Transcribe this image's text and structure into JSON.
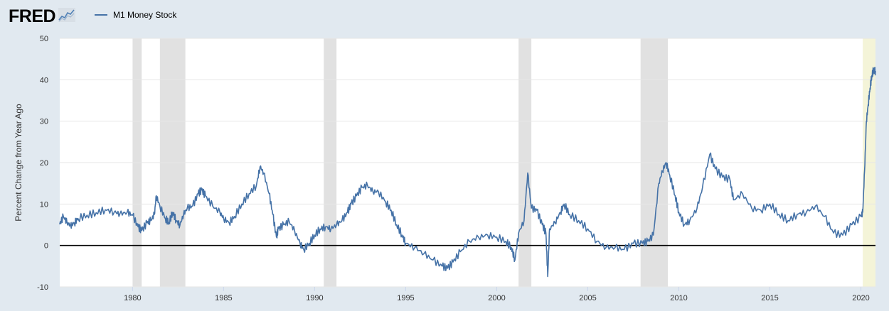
{
  "header": {
    "logo_text": "FRED",
    "logo_mark": "®",
    "logo_icon": "fred-chart-mark-icon"
  },
  "legend": {
    "label": "M1 Money Stock",
    "color": "#4572a7"
  },
  "chart_data": {
    "type": "line",
    "title": "",
    "ylabel": "Percent Change from Year Ago",
    "xlabel": "",
    "xlim": [
      1976.0,
      2020.8
    ],
    "ylim": [
      -10,
      50
    ],
    "x_ticks": [
      1980,
      1985,
      1990,
      1995,
      2000,
      2005,
      2010,
      2015,
      2020
    ],
    "x_tick_labels": [
      "1980",
      "1985",
      "1990",
      "1995",
      "2000",
      "2005",
      "2010",
      "2015",
      "2020"
    ],
    "y_ticks": [
      -10,
      0,
      10,
      20,
      30,
      40,
      50
    ],
    "y_tick_labels": [
      "-10",
      "0",
      "10",
      "20",
      "30",
      "40",
      "50"
    ],
    "grid": true,
    "zero_line": true,
    "recessions": [
      {
        "start": 1980.0,
        "end": 1980.5
      },
      {
        "start": 1981.5,
        "end": 1982.9
      },
      {
        "start": 1990.5,
        "end": 1991.2
      },
      {
        "start": 2001.2,
        "end": 2001.9
      },
      {
        "start": 2007.9,
        "end": 2009.4
      },
      {
        "start": 2020.1,
        "end": 2020.8
      }
    ],
    "recession_color": "#e1e1e1",
    "recent_recession_color": "#f4f4d8",
    "series": [
      {
        "name": "M1 Money Stock",
        "color": "#4572a7",
        "points": [
          [
            1976.0,
            5.2
          ],
          [
            1976.2,
            7.0
          ],
          [
            1976.4,
            5.5
          ],
          [
            1976.6,
            4.8
          ],
          [
            1976.8,
            5.4
          ],
          [
            1977.0,
            6.5
          ],
          [
            1977.5,
            7.3
          ],
          [
            1978.0,
            7.9
          ],
          [
            1978.5,
            8.6
          ],
          [
            1979.0,
            8.1
          ],
          [
            1979.3,
            7.6
          ],
          [
            1979.7,
            8.0
          ],
          [
            1980.0,
            7.3
          ],
          [
            1980.3,
            4.5
          ],
          [
            1980.5,
            3.6
          ],
          [
            1980.8,
            5.5
          ],
          [
            1981.0,
            6.0
          ],
          [
            1981.2,
            7.5
          ],
          [
            1981.3,
            12.0
          ],
          [
            1981.5,
            9.5
          ],
          [
            1981.8,
            6.5
          ],
          [
            1982.0,
            5.5
          ],
          [
            1982.2,
            8.0
          ],
          [
            1982.4,
            6.0
          ],
          [
            1982.6,
            4.9
          ],
          [
            1982.8,
            7.5
          ],
          [
            1983.0,
            9.0
          ],
          [
            1983.3,
            9.5
          ],
          [
            1983.6,
            12.5
          ],
          [
            1983.8,
            13.4
          ],
          [
            1984.0,
            12.0
          ],
          [
            1984.4,
            9.5
          ],
          [
            1984.8,
            8.0
          ],
          [
            1985.0,
            6.5
          ],
          [
            1985.3,
            5.5
          ],
          [
            1985.6,
            7.0
          ],
          [
            1986.0,
            10.0
          ],
          [
            1986.4,
            12.5
          ],
          [
            1986.8,
            14.5
          ],
          [
            1987.0,
            19.0
          ],
          [
            1987.2,
            17.5
          ],
          [
            1987.5,
            12.5
          ],
          [
            1987.7,
            7.5
          ],
          [
            1987.9,
            2.0
          ],
          [
            1988.0,
            4.0
          ],
          [
            1988.3,
            5.0
          ],
          [
            1988.6,
            5.8
          ],
          [
            1988.9,
            3.5
          ],
          [
            1989.2,
            0.5
          ],
          [
            1989.4,
            -1.0
          ],
          [
            1989.7,
            0.5
          ],
          [
            1990.0,
            2.5
          ],
          [
            1990.3,
            4.0
          ],
          [
            1990.6,
            4.5
          ],
          [
            1990.9,
            4.0
          ],
          [
            1991.2,
            5.0
          ],
          [
            1991.5,
            6.0
          ],
          [
            1991.8,
            8.0
          ],
          [
            1992.0,
            10.0
          ],
          [
            1992.3,
            12.0
          ],
          [
            1992.6,
            14.0
          ],
          [
            1992.9,
            14.5
          ],
          [
            1993.2,
            13.0
          ],
          [
            1993.5,
            13.0
          ],
          [
            1993.9,
            10.5
          ],
          [
            1994.2,
            8.5
          ],
          [
            1994.5,
            5.0
          ],
          [
            1994.8,
            2.5
          ],
          [
            1995.0,
            0.5
          ],
          [
            1995.5,
            -0.5
          ],
          [
            1996.0,
            -2.0
          ],
          [
            1996.5,
            -3.5
          ],
          [
            1997.0,
            -5.0
          ],
          [
            1997.3,
            -5.5
          ],
          [
            1997.6,
            -4.0
          ],
          [
            1998.0,
            -1.5
          ],
          [
            1998.5,
            1.0
          ],
          [
            1999.0,
            2.0
          ],
          [
            1999.5,
            2.5
          ],
          [
            2000.0,
            2.0
          ],
          [
            2000.5,
            1.0
          ],
          [
            2000.8,
            -0.5
          ],
          [
            2001.0,
            -3.5
          ],
          [
            2001.2,
            3.0
          ],
          [
            2001.5,
            6.0
          ],
          [
            2001.7,
            17.5
          ],
          [
            2001.9,
            9.0
          ],
          [
            2002.2,
            8.5
          ],
          [
            2002.5,
            5.0
          ],
          [
            2002.7,
            3.0
          ],
          [
            2002.8,
            -7.5
          ],
          [
            2002.9,
            4.0
          ],
          [
            2003.2,
            5.5
          ],
          [
            2003.5,
            8.0
          ],
          [
            2003.7,
            10.0
          ],
          [
            2004.0,
            7.5
          ],
          [
            2004.5,
            6.0
          ],
          [
            2005.0,
            4.0
          ],
          [
            2005.5,
            1.0
          ],
          [
            2006.0,
            -0.5
          ],
          [
            2006.5,
            -0.5
          ],
          [
            2007.0,
            -1.0
          ],
          [
            2007.5,
            0.5
          ],
          [
            2008.0,
            0.5
          ],
          [
            2008.3,
            1.0
          ],
          [
            2008.6,
            2.5
          ],
          [
            2008.9,
            15.0
          ],
          [
            2009.1,
            18.0
          ],
          [
            2009.3,
            20.0
          ],
          [
            2009.5,
            17.0
          ],
          [
            2009.8,
            12.0
          ],
          [
            2010.0,
            8.0
          ],
          [
            2010.3,
            5.0
          ],
          [
            2010.6,
            6.0
          ],
          [
            2011.0,
            9.0
          ],
          [
            2011.3,
            14.0
          ],
          [
            2011.7,
            22.0
          ],
          [
            2012.0,
            18.5
          ],
          [
            2012.4,
            16.5
          ],
          [
            2012.8,
            16.0
          ],
          [
            2013.0,
            11.0
          ],
          [
            2013.5,
            12.5
          ],
          [
            2014.0,
            9.0
          ],
          [
            2014.5,
            8.5
          ],
          [
            2015.0,
            10.0
          ],
          [
            2015.5,
            7.5
          ],
          [
            2016.0,
            6.0
          ],
          [
            2016.5,
            7.5
          ],
          [
            2017.0,
            8.0
          ],
          [
            2017.5,
            9.5
          ],
          [
            2018.0,
            7.0
          ],
          [
            2018.5,
            3.0
          ],
          [
            2019.0,
            2.5
          ],
          [
            2019.5,
            5.0
          ],
          [
            2020.0,
            7.0
          ],
          [
            2020.1,
            8.0
          ],
          [
            2020.2,
            18.0
          ],
          [
            2020.3,
            30.0
          ],
          [
            2020.4,
            34.0
          ],
          [
            2020.5,
            38.0
          ],
          [
            2020.6,
            41.0
          ],
          [
            2020.7,
            42.5
          ],
          [
            2020.8,
            42.0
          ]
        ]
      }
    ]
  }
}
